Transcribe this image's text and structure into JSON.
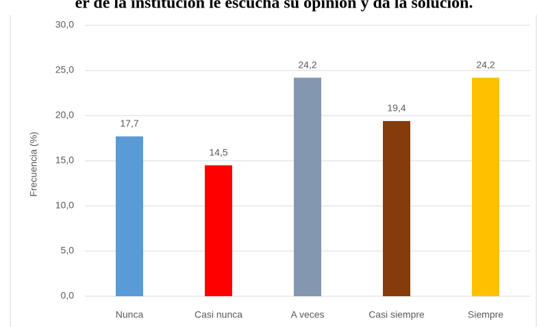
{
  "chart_data": {
    "type": "bar",
    "title": "er de la institución le escucha su opinión y da la solución.",
    "y_label": "Frecuencia (%)",
    "categories": [
      "Nunca",
      "Casi nunca",
      "A veces",
      "Casi siempre",
      "Siempre"
    ],
    "values": [
      17.7,
      14.5,
      24.2,
      19.4,
      24.2
    ],
    "value_labels": [
      "17,7",
      "14,5",
      "24,2",
      "19,4",
      "24,2"
    ],
    "colors": [
      "#5b9bd5",
      "#ff0000",
      "#8497b0",
      "#843c0c",
      "#ffc000"
    ],
    "ylim": [
      0,
      30
    ],
    "yticks": [
      {
        "value": 0,
        "label": "0,0"
      },
      {
        "value": 5,
        "label": "5,0"
      },
      {
        "value": 10,
        "label": "10,0"
      },
      {
        "value": 15,
        "label": "15,0"
      },
      {
        "value": 20,
        "label": "20,0"
      },
      {
        "value": 25,
        "label": "25,0"
      },
      {
        "value": 30,
        "label": "30,0"
      }
    ],
    "grid": true
  }
}
